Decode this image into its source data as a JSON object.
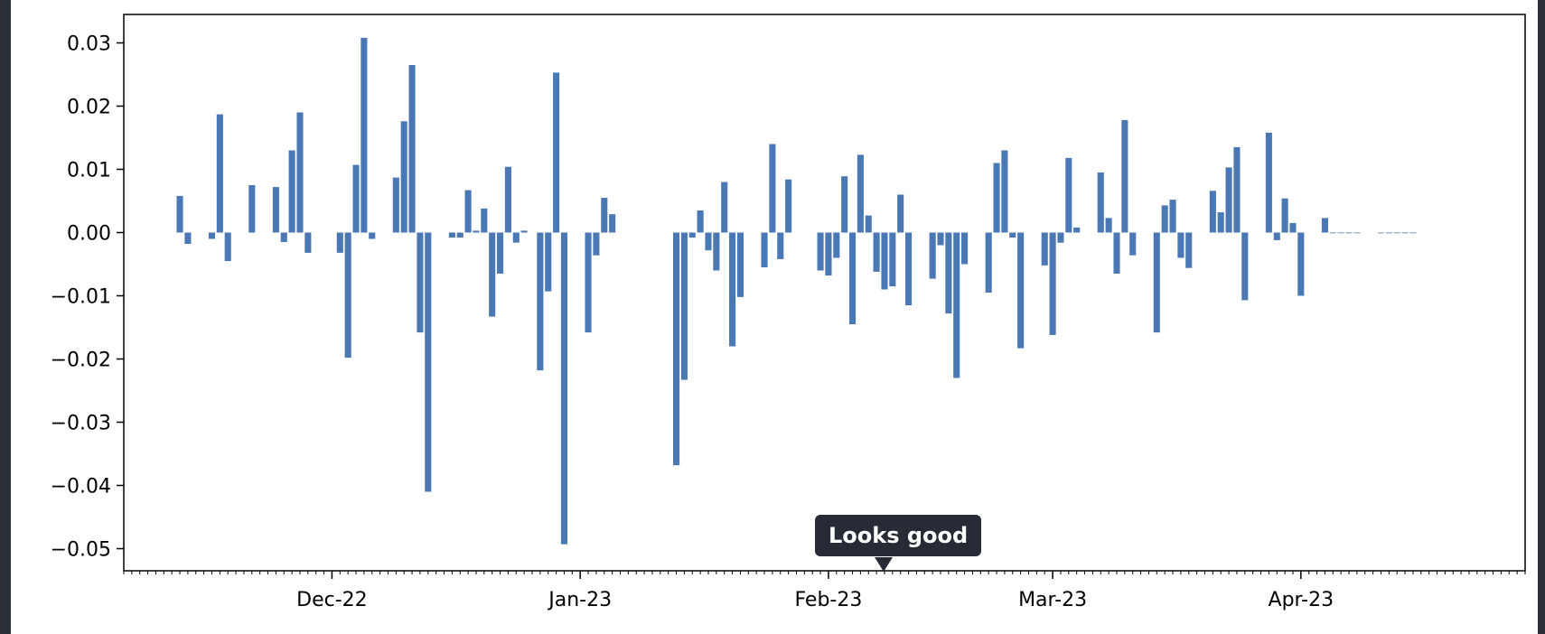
{
  "chart_data": {
    "type": "bar",
    "title": "",
    "xlabel": "",
    "ylabel": "",
    "ylim": [
      -0.0535,
      0.0345
    ],
    "xlim": [
      "2022-11-05",
      "2023-04-29"
    ],
    "grid": false,
    "bar_color": "#4a78b4",
    "y_ticks": [
      {
        "value": 0.03,
        "label": "0.03"
      },
      {
        "value": 0.02,
        "label": "0.02"
      },
      {
        "value": 0.01,
        "label": "0.01"
      },
      {
        "value": 0.0,
        "label": "0.00"
      },
      {
        "value": -0.01,
        "label": "−0.01"
      },
      {
        "value": -0.02,
        "label": "−0.02"
      },
      {
        "value": -0.03,
        "label": "−0.03"
      },
      {
        "value": -0.04,
        "label": "−0.04"
      },
      {
        "value": -0.05,
        "label": "−0.05"
      }
    ],
    "x_ticks": [
      {
        "value": "2022-12-01",
        "label": "Dec-22"
      },
      {
        "value": "2023-01-01",
        "label": "Jan-23"
      },
      {
        "value": "2023-02-01",
        "label": "Feb-23"
      },
      {
        "value": "2023-03-01",
        "label": "Mar-23"
      },
      {
        "value": "2023-04-01",
        "label": "Apr-23"
      }
    ],
    "x": [
      "2022-11-12",
      "2022-11-13",
      "2022-11-16",
      "2022-11-17",
      "2022-11-18",
      "2022-11-21",
      "2022-11-24",
      "2022-11-25",
      "2022-11-26",
      "2022-11-27",
      "2022-11-28",
      "2022-12-02",
      "2022-12-03",
      "2022-12-04",
      "2022-12-05",
      "2022-12-06",
      "2022-12-09",
      "2022-12-10",
      "2022-12-11",
      "2022-12-12",
      "2022-12-13",
      "2022-12-16",
      "2022-12-17",
      "2022-12-18",
      "2022-12-19",
      "2022-12-20",
      "2022-12-21",
      "2022-12-22",
      "2022-12-23",
      "2022-12-24",
      "2022-12-25",
      "2022-12-27",
      "2022-12-28",
      "2022-12-29",
      "2022-12-30",
      "2023-01-02",
      "2023-01-03",
      "2023-01-04",
      "2023-01-05",
      "2023-01-13",
      "2023-01-14",
      "2023-01-15",
      "2023-01-16",
      "2023-01-17",
      "2023-01-18",
      "2023-01-19",
      "2023-01-20",
      "2023-01-21",
      "2023-01-24",
      "2023-01-25",
      "2023-01-26",
      "2023-01-27",
      "2023-01-31",
      "2023-02-01",
      "2023-02-02",
      "2023-02-03",
      "2023-02-04",
      "2023-02-05",
      "2023-02-06",
      "2023-02-07",
      "2023-02-08",
      "2023-02-09",
      "2023-02-10",
      "2023-02-11",
      "2023-02-14",
      "2023-02-15",
      "2023-02-16",
      "2023-02-17",
      "2023-02-18",
      "2023-02-21",
      "2023-02-22",
      "2023-02-23",
      "2023-02-24",
      "2023-02-25",
      "2023-02-28",
      "2023-03-01",
      "2023-03-02",
      "2023-03-03",
      "2023-03-04",
      "2023-03-07",
      "2023-03-08",
      "2023-03-09",
      "2023-03-10",
      "2023-03-11",
      "2023-03-14",
      "2023-03-15",
      "2023-03-16",
      "2023-03-17",
      "2023-03-18",
      "2023-03-21",
      "2023-03-22",
      "2023-03-23",
      "2023-03-24",
      "2023-03-25",
      "2023-03-28",
      "2023-03-29",
      "2023-03-30",
      "2023-03-31",
      "2023-04-01",
      "2023-04-04",
      "2023-04-05",
      "2023-04-06",
      "2023-04-07",
      "2023-04-08",
      "2023-04-11",
      "2023-04-12",
      "2023-04-13",
      "2023-04-14",
      "2023-04-15"
    ],
    "values": [
      0.0058,
      -0.0018,
      -0.001,
      0.0187,
      -0.0045,
      0.0075,
      0.0072,
      -0.0015,
      0.013,
      0.019,
      -0.0032,
      -0.0032,
      -0.0198,
      0.0107,
      0.0308,
      -0.001,
      0.0087,
      0.0176,
      0.0265,
      -0.0158,
      -0.041,
      -0.0008,
      -0.0008,
      0.0067,
      0.0003,
      0.0038,
      -0.0133,
      -0.0065,
      0.0104,
      -0.0016,
      0.0003,
      -0.0218,
      -0.0093,
      0.0253,
      -0.0493,
      -0.0158,
      -0.0036,
      0.0055,
      0.0029,
      -0.0368,
      -0.0233,
      -0.0008,
      0.0035,
      -0.0028,
      -0.006,
      0.008,
      -0.018,
      -0.0102,
      -0.0055,
      0.014,
      -0.0042,
      0.0084,
      -0.006,
      -0.0068,
      -0.004,
      0.0089,
      -0.0145,
      0.0123,
      0.0027,
      -0.0062,
      -0.009,
      -0.0085,
      0.006,
      -0.0115,
      -0.0073,
      -0.002,
      -0.0128,
      -0.023,
      -0.005,
      -0.0095,
      0.011,
      0.013,
      -0.0008,
      -0.0183,
      -0.0052,
      -0.0162,
      -0.0016,
      0.0118,
      0.0008,
      0.0095,
      0.0023,
      -0.0065,
      0.0178,
      -0.0036,
      -0.0158,
      0.0043,
      0.0052,
      -0.004,
      -0.0056,
      0.0066,
      0.0032,
      0.0103,
      0.0135,
      -0.0107,
      0.0158,
      -0.0012,
      0.0054,
      0.0015,
      -0.01,
      0.0023,
      0.0,
      0.0,
      0.0,
      0.0,
      0.0,
      0.0,
      0.0,
      0.0,
      0.0
    ]
  },
  "tooltip": {
    "text": "Looks good"
  }
}
